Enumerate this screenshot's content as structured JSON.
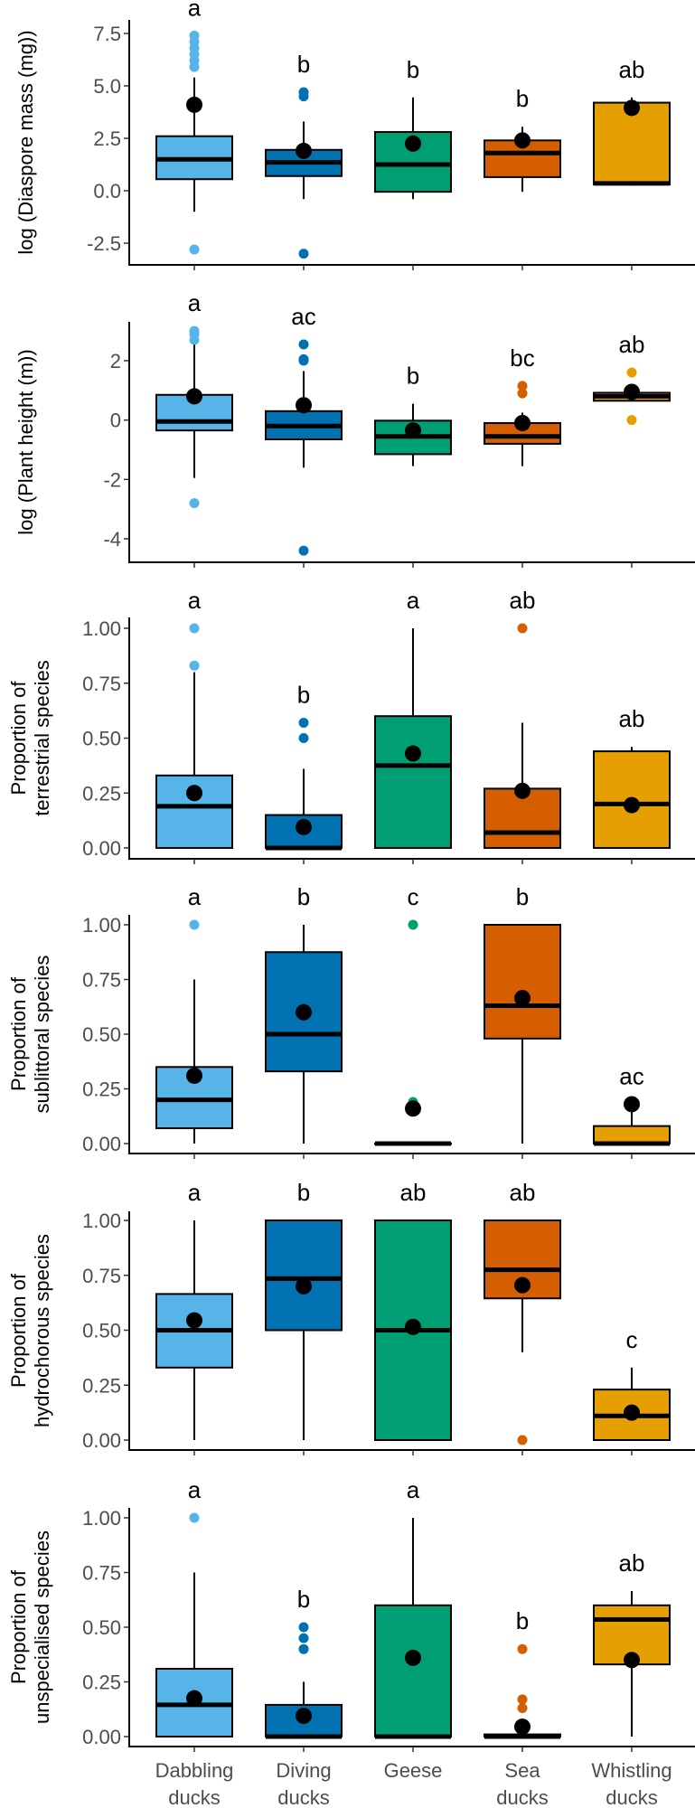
{
  "chart_data": {
    "type": "boxplot",
    "categories": [
      "Dabbling ducks",
      "Diving ducks",
      "Geese",
      "Sea ducks",
      "Whistling ducks"
    ],
    "category_lines": [
      [
        "Dabbling",
        "ducks"
      ],
      [
        "Diving",
        "ducks"
      ],
      [
        "Geese"
      ],
      [
        "Sea",
        "ducks"
      ],
      [
        "Whistling",
        "ducks"
      ]
    ],
    "colors": [
      "#56B4E9",
      "#0072B2",
      "#009E73",
      "#D55E00",
      "#E69F00"
    ],
    "panels": [
      {
        "ylabel": [
          "log (Diaspore mass (mg))"
        ],
        "ylim": [
          -3.4,
          7.8
        ],
        "yticks": [
          -2.5,
          0,
          2.5,
          5,
          7.5
        ],
        "ytick_labels": [
          "-2.5",
          "0.0",
          "2.5",
          "5.0",
          "7.5"
        ],
        "letters": [
          "a",
          "b",
          "b",
          "b",
          "ab"
        ],
        "boxes": [
          {
            "q1": 0.55,
            "median": 1.5,
            "q3": 2.6,
            "whisker_low": -1.0,
            "whisker_high": 5.4,
            "mean": 4.1,
            "outliers": [
              5.9,
              6.2,
              6.5,
              6.8,
              7.1,
              7.4,
              -2.8
            ]
          },
          {
            "q1": 0.7,
            "median": 1.35,
            "q3": 1.95,
            "whisker_low": -0.4,
            "whisker_high": 3.3,
            "mean": 1.9,
            "outliers": [
              4.5,
              4.7,
              -3.0
            ]
          },
          {
            "q1": -0.05,
            "median": 1.25,
            "q3": 2.8,
            "whisker_low": -0.4,
            "whisker_high": 4.45,
            "mean": 2.25,
            "outliers": []
          },
          {
            "q1": 0.65,
            "median": 1.8,
            "q3": 2.4,
            "whisker_low": -0.05,
            "whisker_high": 3.05,
            "mean": 2.4,
            "outliers": []
          },
          {
            "q1": 0.3,
            "median": 0.35,
            "q3": 4.2,
            "whisker_low": 0.25,
            "whisker_high": 4.45,
            "mean": 3.95,
            "outliers": []
          }
        ]
      },
      {
        "ylabel": [
          "log (Plant height (m))"
        ],
        "ylim": [
          -4.7,
          3.3
        ],
        "yticks": [
          -4,
          -2,
          0,
          2
        ],
        "ytick_labels": [
          "-4",
          "-2",
          "0",
          "2"
        ],
        "letters": [
          "a",
          "ac",
          "b",
          "bc",
          "ab"
        ],
        "boxes": [
          {
            "q1": -0.35,
            "median": -0.05,
            "q3": 0.85,
            "whisker_low": -1.95,
            "whisker_high": 2.6,
            "mean": 0.8,
            "outliers": [
              2.7,
              2.9,
              3.0,
              -2.8
            ]
          },
          {
            "q1": -0.65,
            "median": -0.2,
            "q3": 0.3,
            "whisker_low": -1.6,
            "whisker_high": 1.65,
            "mean": 0.5,
            "outliers": [
              2.0,
              2.05,
              2.55,
              -4.4
            ]
          },
          {
            "q1": -1.15,
            "median": -0.55,
            "q3": -0.02,
            "whisker_low": -1.55,
            "whisker_high": 0.55,
            "mean": -0.35,
            "outliers": []
          },
          {
            "q1": -0.8,
            "median": -0.55,
            "q3": -0.1,
            "whisker_low": -1.55,
            "whisker_high": 0.25,
            "mean": -0.1,
            "outliers": [
              0.9,
              1.15
            ]
          },
          {
            "q1": 0.65,
            "median": 0.8,
            "q3": 0.92,
            "whisker_low": 0.65,
            "whisker_high": 0.92,
            "mean": 0.95,
            "outliers": [
              1.6,
              0.0
            ]
          }
        ]
      },
      {
        "ylabel": [
          "Proportion of",
          "terrestrial species"
        ],
        "ylim": [
          -0.05,
          1.1
        ],
        "yticks": [
          0,
          0.25,
          0.5,
          0.75,
          1
        ],
        "ytick_labels": [
          "0.00",
          "0.25",
          "0.50",
          "0.75",
          "1.00"
        ],
        "letters": [
          "a",
          "b",
          "a",
          "ab",
          "ab"
        ],
        "boxes": [
          {
            "q1": 0.0,
            "median": 0.19,
            "q3": 0.33,
            "whisker_low": 0.0,
            "whisker_high": 0.8,
            "mean": 0.25,
            "outliers": [
              0.83,
              1.0
            ]
          },
          {
            "q1": 0.0,
            "median": 0.0,
            "q3": 0.15,
            "whisker_low": 0.0,
            "whisker_high": 0.36,
            "mean": 0.095,
            "outliers": [
              0.5,
              0.57
            ]
          },
          {
            "q1": 0.0,
            "median": 0.375,
            "q3": 0.6,
            "whisker_low": 0.0,
            "whisker_high": 1.0,
            "mean": 0.43,
            "outliers": []
          },
          {
            "q1": 0.0,
            "median": 0.07,
            "q3": 0.27,
            "whisker_low": 0.0,
            "whisker_high": 0.57,
            "mean": 0.26,
            "outliers": [
              1.0
            ]
          },
          {
            "q1": 0.0,
            "median": 0.2,
            "q3": 0.44,
            "whisker_low": 0.0,
            "whisker_high": 0.46,
            "mean": 0.195,
            "outliers": []
          }
        ]
      },
      {
        "ylabel": [
          "Proportion of",
          "sublittoral species"
        ],
        "ylim": [
          -0.05,
          1.1
        ],
        "yticks": [
          0,
          0.25,
          0.5,
          0.75,
          1
        ],
        "ytick_labels": [
          "0.00",
          "0.25",
          "0.50",
          "0.75",
          "1.00"
        ],
        "letters": [
          "a",
          "b",
          "c",
          "b",
          "ac"
        ],
        "boxes": [
          {
            "q1": 0.07,
            "median": 0.2,
            "q3": 0.35,
            "whisker_low": 0.0,
            "whisker_high": 0.75,
            "mean": 0.31,
            "outliers": [
              1.0
            ]
          },
          {
            "q1": 0.33,
            "median": 0.5,
            "q3": 0.875,
            "whisker_low": 0.0,
            "whisker_high": 1.0,
            "mean": 0.6,
            "outliers": []
          },
          {
            "q1": 0.0,
            "median": 0.0,
            "q3": 0.0,
            "whisker_low": 0.0,
            "whisker_high": 0.0,
            "mean": 0.16,
            "outliers": [
              1.0,
              0.19
            ]
          },
          {
            "q1": 0.48,
            "median": 0.63,
            "q3": 1.0,
            "whisker_low": 0.0,
            "whisker_high": 1.0,
            "mean": 0.665,
            "outliers": []
          },
          {
            "q1": 0.0,
            "median": 0.0,
            "q3": 0.08,
            "whisker_low": 0.0,
            "whisker_high": 0.18,
            "mean": 0.18,
            "outliers": []
          }
        ]
      },
      {
        "ylabel": [
          "Proportion of",
          "hydrochorous species"
        ],
        "ylim": [
          -0.05,
          1.1
        ],
        "yticks": [
          0,
          0.25,
          0.5,
          0.75,
          1
        ],
        "ytick_labels": [
          "0.00",
          "0.25",
          "0.50",
          "0.75",
          "1.00"
        ],
        "letters": [
          "a",
          "b",
          "ab",
          "ab",
          "c"
        ],
        "boxes": [
          {
            "q1": 0.33,
            "median": 0.5,
            "q3": 0.665,
            "whisker_low": 0.0,
            "whisker_high": 1.0,
            "mean": 0.545,
            "outliers": []
          },
          {
            "q1": 0.5,
            "median": 0.735,
            "q3": 1.0,
            "whisker_low": 0.0,
            "whisker_high": 1.0,
            "mean": 0.7,
            "outliers": []
          },
          {
            "q1": 0.0,
            "median": 0.5,
            "q3": 1.0,
            "whisker_low": 0.0,
            "whisker_high": 1.0,
            "mean": 0.515,
            "outliers": []
          },
          {
            "q1": 0.645,
            "median": 0.775,
            "q3": 1.0,
            "whisker_low": 0.4,
            "whisker_high": 1.0,
            "mean": 0.705,
            "outliers": [
              0.0
            ]
          },
          {
            "q1": 0.0,
            "median": 0.11,
            "q3": 0.23,
            "whisker_low": 0.0,
            "whisker_high": 0.33,
            "mean": 0.125,
            "outliers": []
          }
        ]
      },
      {
        "ylabel": [
          "Proportion of",
          "unspecialised species"
        ],
        "ylim": [
          -0.05,
          1.1
        ],
        "yticks": [
          0,
          0.25,
          0.5,
          0.75,
          1
        ],
        "ytick_labels": [
          "0.00",
          "0.25",
          "0.50",
          "0.75",
          "1.00"
        ],
        "letters": [
          "a",
          "b",
          "a",
          "b",
          "ab"
        ],
        "boxes": [
          {
            "q1": 0.0,
            "median": 0.145,
            "q3": 0.31,
            "whisker_low": 0.0,
            "whisker_high": 0.75,
            "mean": 0.175,
            "outliers": [
              1.0
            ]
          },
          {
            "q1": 0.0,
            "median": 0.0,
            "q3": 0.145,
            "whisker_low": 0.0,
            "whisker_high": 0.25,
            "mean": 0.095,
            "outliers": [
              0.4,
              0.45,
              0.5
            ]
          },
          {
            "q1": 0.0,
            "median": 0.0,
            "q3": 0.6,
            "whisker_low": 0.0,
            "whisker_high": 1.0,
            "mean": 0.36,
            "outliers": []
          },
          {
            "q1": 0.0,
            "median": 0.0,
            "q3": 0.01,
            "whisker_low": 0.0,
            "whisker_high": 0.0,
            "mean": 0.045,
            "outliers": [
              0.13,
              0.17,
              0.4
            ]
          },
          {
            "q1": 0.33,
            "median": 0.535,
            "q3": 0.6,
            "whisker_low": 0.0,
            "whisker_high": 0.665,
            "mean": 0.35,
            "outliers": []
          }
        ]
      }
    ]
  }
}
